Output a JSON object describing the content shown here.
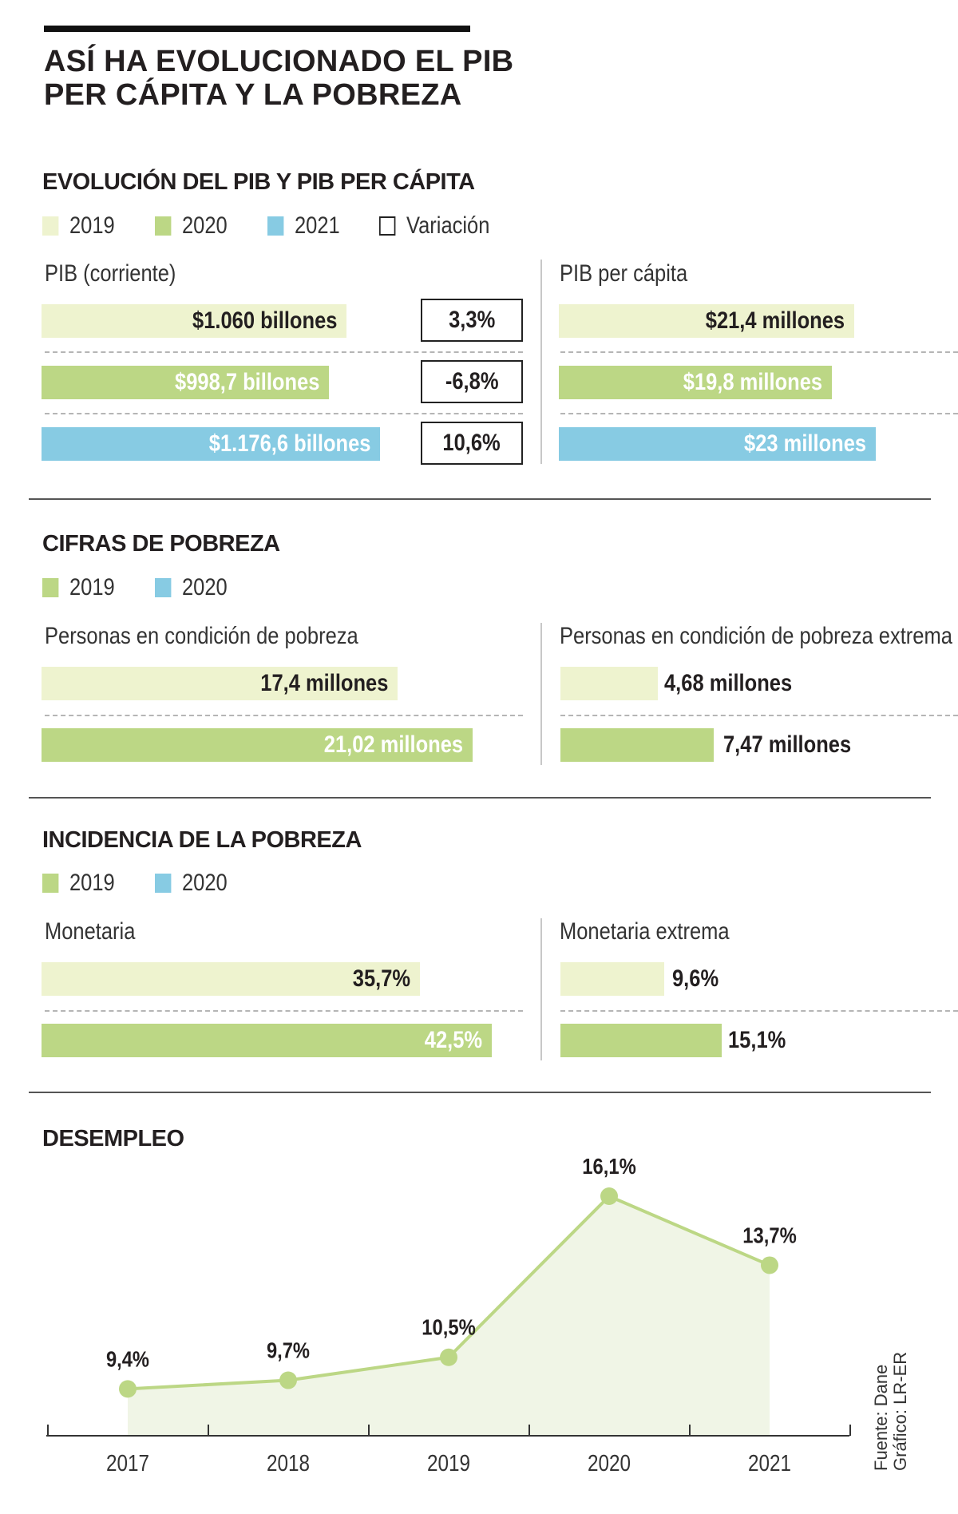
{
  "header": {
    "title_line1": "ASÍ HA EVOLUCIONADO EL PIB",
    "title_line2": "PER CÁPITA Y LA POBREZA"
  },
  "colors": {
    "c2019": "#eef3cf",
    "c2020": "#bcd785",
    "c2021": "#87cbe3",
    "line": "#bcd785",
    "area": "#f0f5e6"
  },
  "pib": {
    "title": "EVOLUCIÓN DEL PIB Y PIB PER CÁPITA",
    "legend": [
      "2019",
      "2020",
      "2021",
      "Variación"
    ],
    "left_label": "PIB (corriente)",
    "right_label": "PIB per cápita",
    "pib_bars": [
      {
        "year": "2019",
        "value": 1060,
        "label": "$1.060 billones",
        "variation": "3,3%"
      },
      {
        "year": "2020",
        "value": 998.7,
        "label": "$998,7 billones",
        "variation": "-6,8%"
      },
      {
        "year": "2021",
        "value": 1176.6,
        "label": "$1.176,6 billones",
        "variation": "10,6%"
      }
    ],
    "percapita_bars": [
      {
        "year": "2019",
        "value": 21.4,
        "label": "$21,4 millones"
      },
      {
        "year": "2020",
        "value": 19.8,
        "label": "$19,8 millones"
      },
      {
        "year": "2021",
        "value": 23,
        "label": "$23 millones"
      }
    ]
  },
  "pobreza": {
    "title": "CIFRAS DE POBREZA",
    "legend": [
      "2019",
      "2020"
    ],
    "left_label": "Personas en condición de pobreza",
    "right_label": "Personas en condición de pobreza extrema",
    "left_bars": [
      {
        "year": "2019",
        "value": 17.4,
        "label": "17,4 millones"
      },
      {
        "year": "2020",
        "value": 21.02,
        "label": "21,02 millones"
      }
    ],
    "right_bars": [
      {
        "year": "2019",
        "value": 4.68,
        "label": "4,68 millones"
      },
      {
        "year": "2020",
        "value": 7.47,
        "label": "7,47 millones"
      }
    ]
  },
  "incidencia": {
    "title": "INCIDENCIA DE LA POBREZA",
    "legend": [
      "2019",
      "2020"
    ],
    "left_label": "Monetaria",
    "right_label": "Monetaria extrema",
    "left_bars": [
      {
        "year": "2019",
        "value": 35.7,
        "label": "35,7%"
      },
      {
        "year": "2020",
        "value": 42.5,
        "label": "42,5%"
      }
    ],
    "right_bars": [
      {
        "year": "2019",
        "value": 9.6,
        "label": "9,6%"
      },
      {
        "year": "2020",
        "value": 15.1,
        "label": "15,1%"
      }
    ]
  },
  "chart_data": {
    "type": "area",
    "title": "DESEMPLEO",
    "categories": [
      "2017",
      "2018",
      "2019",
      "2020",
      "2021"
    ],
    "values": [
      9.4,
      9.7,
      10.5,
      16.1,
      13.7
    ],
    "labels": [
      "9,4%",
      "9,7%",
      "10,5%",
      "16,1%",
      "13,7%"
    ],
    "ylim": [
      7.8,
      16.6
    ],
    "xlabel": "",
    "ylabel": ""
  },
  "source": {
    "line1": "Fuente: Dane",
    "line2": "Gráfico: LR-ER"
  }
}
